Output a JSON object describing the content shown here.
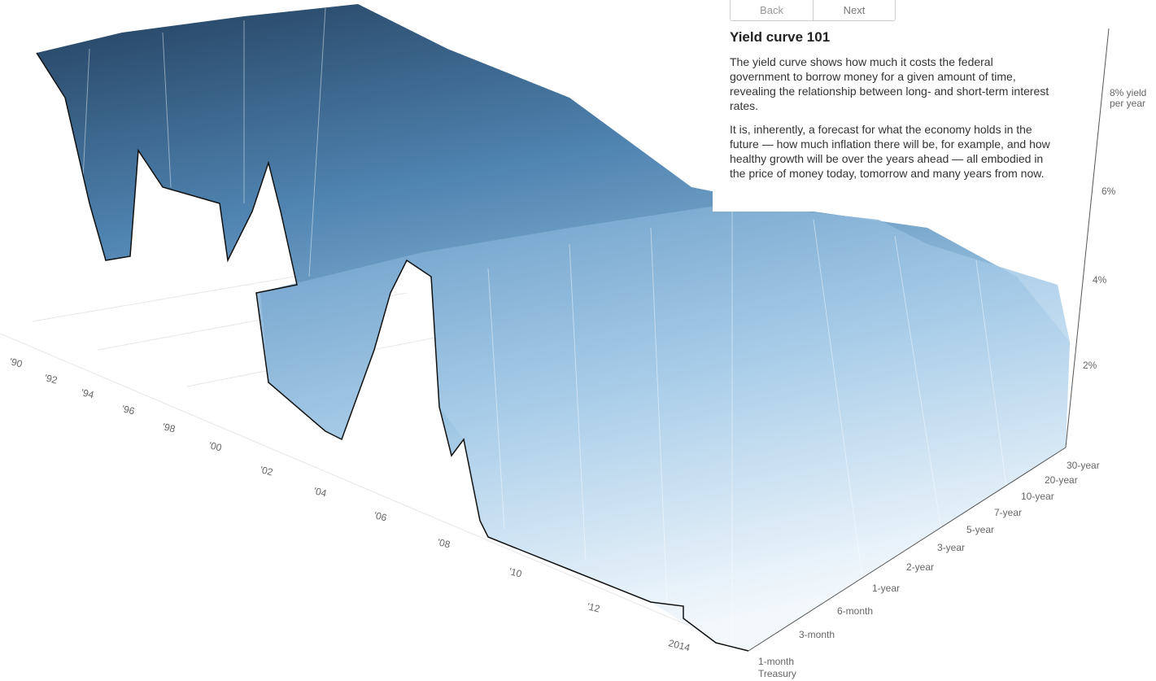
{
  "nav": {
    "back": "Back",
    "next": "Next"
  },
  "panel": {
    "title": "Yield curve 101",
    "paragraphs": [
      "The yield curve shows how much it costs the federal government to borrow money for a given amount of time, revealing the relationship between long- and short-term interest rates.",
      "It is, inherently, a forecast for what the economy holds in the future — how much inflation there will be, for example, and how healthy growth will be over the years ahead — all embodied in the price of money today, tomorrow and many years from now."
    ]
  },
  "axes": {
    "years": [
      "'90",
      "'92",
      "'94",
      "'96",
      "'98",
      "'00",
      "'02",
      "'04",
      "'06",
      "'08",
      "'10",
      "'12",
      "2014"
    ],
    "maturities": [
      "1-month Treasury",
      "3-month",
      "6-month",
      "1-year",
      "2-year",
      "3-year",
      "5-year",
      "7-year",
      "10-year",
      "20-year",
      "30-year"
    ],
    "yields": [
      "8% yield per year",
      "6%",
      "4%",
      "2%"
    ]
  }
}
